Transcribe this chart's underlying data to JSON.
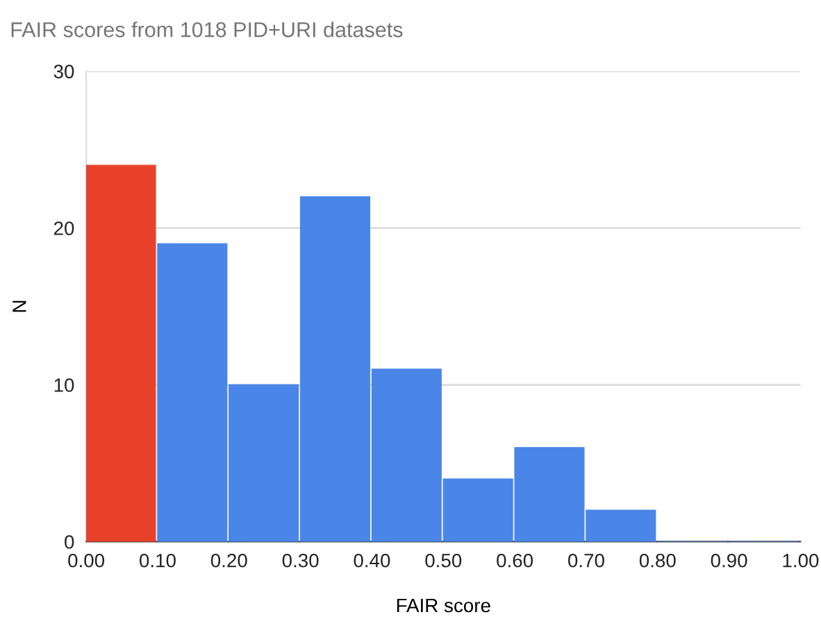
{
  "chart_data": {
    "type": "histogram",
    "title": "FAIR scores from 1018 PID+URI datasets",
    "xlabel": "FAIR score",
    "ylabel": "N",
    "bins": [
      0.0,
      0.1,
      0.2,
      0.3,
      0.4,
      0.5,
      0.6,
      0.7,
      0.8,
      0.9,
      1.0
    ],
    "values": [
      24,
      19,
      10,
      22,
      11,
      4,
      6,
      2,
      0,
      0
    ],
    "colors": [
      "#e8412a",
      "#4a86e8",
      "#4a86e8",
      "#4a86e8",
      "#4a86e8",
      "#4a86e8",
      "#4a86e8",
      "#4a86e8",
      "#4a86e8",
      "#4a86e8"
    ],
    "xlim": [
      0,
      1
    ],
    "ylim": [
      0,
      30
    ],
    "xticks": [
      {
        "value": 0,
        "label": "0.00"
      },
      {
        "value": 0.1,
        "label": "0.10"
      },
      {
        "value": 0.2,
        "label": "0.20"
      },
      {
        "value": 0.3,
        "label": "0.30"
      },
      {
        "value": 0.4,
        "label": "0.40"
      },
      {
        "value": 0.5,
        "label": "0.50"
      },
      {
        "value": 0.6,
        "label": "0.60"
      },
      {
        "value": 0.7,
        "label": "0.70"
      },
      {
        "value": 0.8,
        "label": "0.80"
      },
      {
        "value": 0.9,
        "label": "0.90"
      },
      {
        "value": 1,
        "label": "1.00"
      }
    ],
    "yticks": [
      0,
      10,
      20,
      30
    ],
    "grid": "y",
    "legend": false
  }
}
